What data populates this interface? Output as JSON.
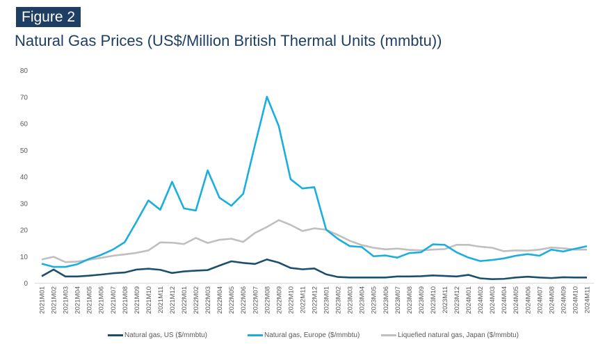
{
  "figure_label": "Figure 2",
  "chart_data": {
    "type": "line",
    "title": "Natural Gas Prices (US$/Million British Thermal Units (mmbtu))",
    "xlabel": "",
    "ylabel": "",
    "ylim": [
      0,
      80
    ],
    "yticks": [
      0,
      10,
      20,
      30,
      40,
      50,
      60,
      70,
      80
    ],
    "grid": false,
    "legend_position": "bottom",
    "categories": [
      "2021M01",
      "2021M02",
      "2021M03",
      "2021M04",
      "2021M05",
      "2021M06",
      "2021M07",
      "2021M08",
      "2021M09",
      "2021M10",
      "2021M11",
      "2021M12",
      "2022M01",
      "2022M02",
      "2022M03",
      "2022M04",
      "2022M05",
      "2022M06",
      "2022M07",
      "2022M08",
      "2022M09",
      "2022M10",
      "2022M11",
      "2022M12",
      "2023M01",
      "2023M02",
      "2023M03",
      "2023M04",
      "2023M05",
      "2023M06",
      "2023M07",
      "2023M08",
      "2023M09",
      "2023M10",
      "2023M11",
      "2023M12",
      "2024M01",
      "2024M02",
      "2024M03",
      "2024M04",
      "2024M05",
      "2024M06",
      "2024M07",
      "2024M08",
      "2024M09",
      "2024M10",
      "2024M11"
    ],
    "series": [
      {
        "name": "Natural gas, US ($/mmbtu)",
        "color": "#1b4f6e",
        "values": [
          2.5,
          5,
          2.4,
          2.4,
          2.7,
          3.1,
          3.6,
          3.9,
          5,
          5.3,
          4.9,
          3.7,
          4.3,
          4.6,
          4.8,
          6.5,
          8.1,
          7.5,
          7.1,
          8.8,
          7.6,
          5.6,
          5.1,
          5.4,
          3.2,
          2.2,
          2,
          2,
          2,
          2,
          2.4,
          2.4,
          2.5,
          2.8,
          2.6,
          2.4,
          3,
          1.7,
          1.4,
          1.5,
          2,
          2.3,
          2,
          1.8,
          2.1,
          2,
          2
        ]
      },
      {
        "name": "Natural gas, Europe ($/mmbtu)",
        "color": "#1aaee0",
        "values": [
          7.2,
          6,
          6,
          7,
          9,
          10.5,
          12.5,
          15.3,
          23,
          31,
          27.5,
          38,
          28,
          27.2,
          42.3,
          32,
          29,
          33.5,
          52,
          70,
          59,
          39,
          35.5,
          36,
          20,
          16.5,
          13.8,
          13.5,
          10,
          10.3,
          9.5,
          11.2,
          11.5,
          14.5,
          14.3,
          11.5,
          9.5,
          8.2,
          8.6,
          9.2,
          10.2,
          10.8,
          10.2,
          12.5,
          11.8,
          12.8,
          13.8
        ]
      },
      {
        "name": "Liquefied natural gas, Japan ($/mmbtu)",
        "color": "#bfbfbf",
        "values": [
          8.8,
          9.8,
          7.8,
          8,
          8.7,
          9.4,
          10.2,
          10.7,
          11.3,
          12.2,
          15.2,
          15.1,
          14.6,
          16.9,
          15,
          16.2,
          16.6,
          15.4,
          18.8,
          21,
          23.6,
          21.8,
          19.5,
          20.5,
          20,
          18,
          15.8,
          14.2,
          13.2,
          12.6,
          12.9,
          12.4,
          12.2,
          12.5,
          12.7,
          14.3,
          14.3,
          13.6,
          13.2,
          11.9,
          12.2,
          12.1,
          12.5,
          13.3,
          13,
          12.5,
          12.5
        ]
      }
    ]
  }
}
